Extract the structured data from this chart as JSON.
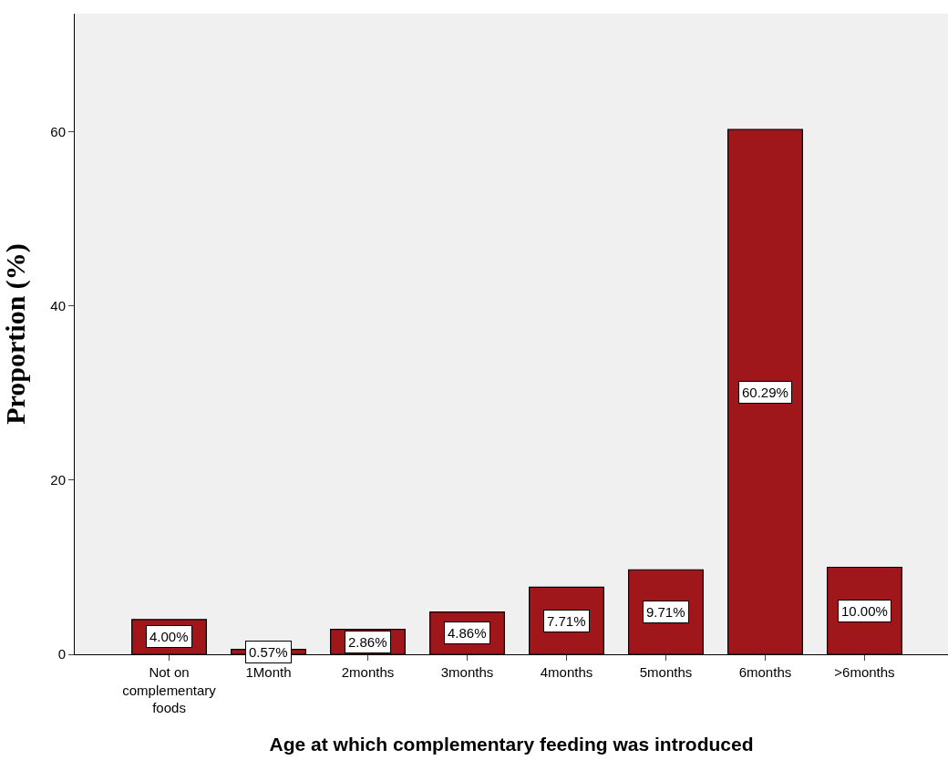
{
  "chart_data": {
    "type": "bar",
    "xlabel": "Age at which complementary feeding was introduced",
    "ylabel": "Proportion (%)",
    "categories": [
      "Not on complementary foods",
      "1Month",
      "2months",
      "3months",
      "4months",
      "5months",
      "6months",
      ">6months"
    ],
    "values": [
      4.0,
      0.57,
      2.86,
      4.86,
      7.71,
      9.71,
      60.29,
      10.0
    ],
    "value_labels": [
      "4.00%",
      "0.57%",
      "2.86%",
      "4.86%",
      "7.71%",
      "9.71%",
      "60.29%",
      "10.00%"
    ],
    "color": "#a0171b",
    "ylim": [
      0,
      73.6
    ],
    "yticks": [
      0,
      20,
      40,
      60
    ],
    "grid": false,
    "legend": false
  }
}
